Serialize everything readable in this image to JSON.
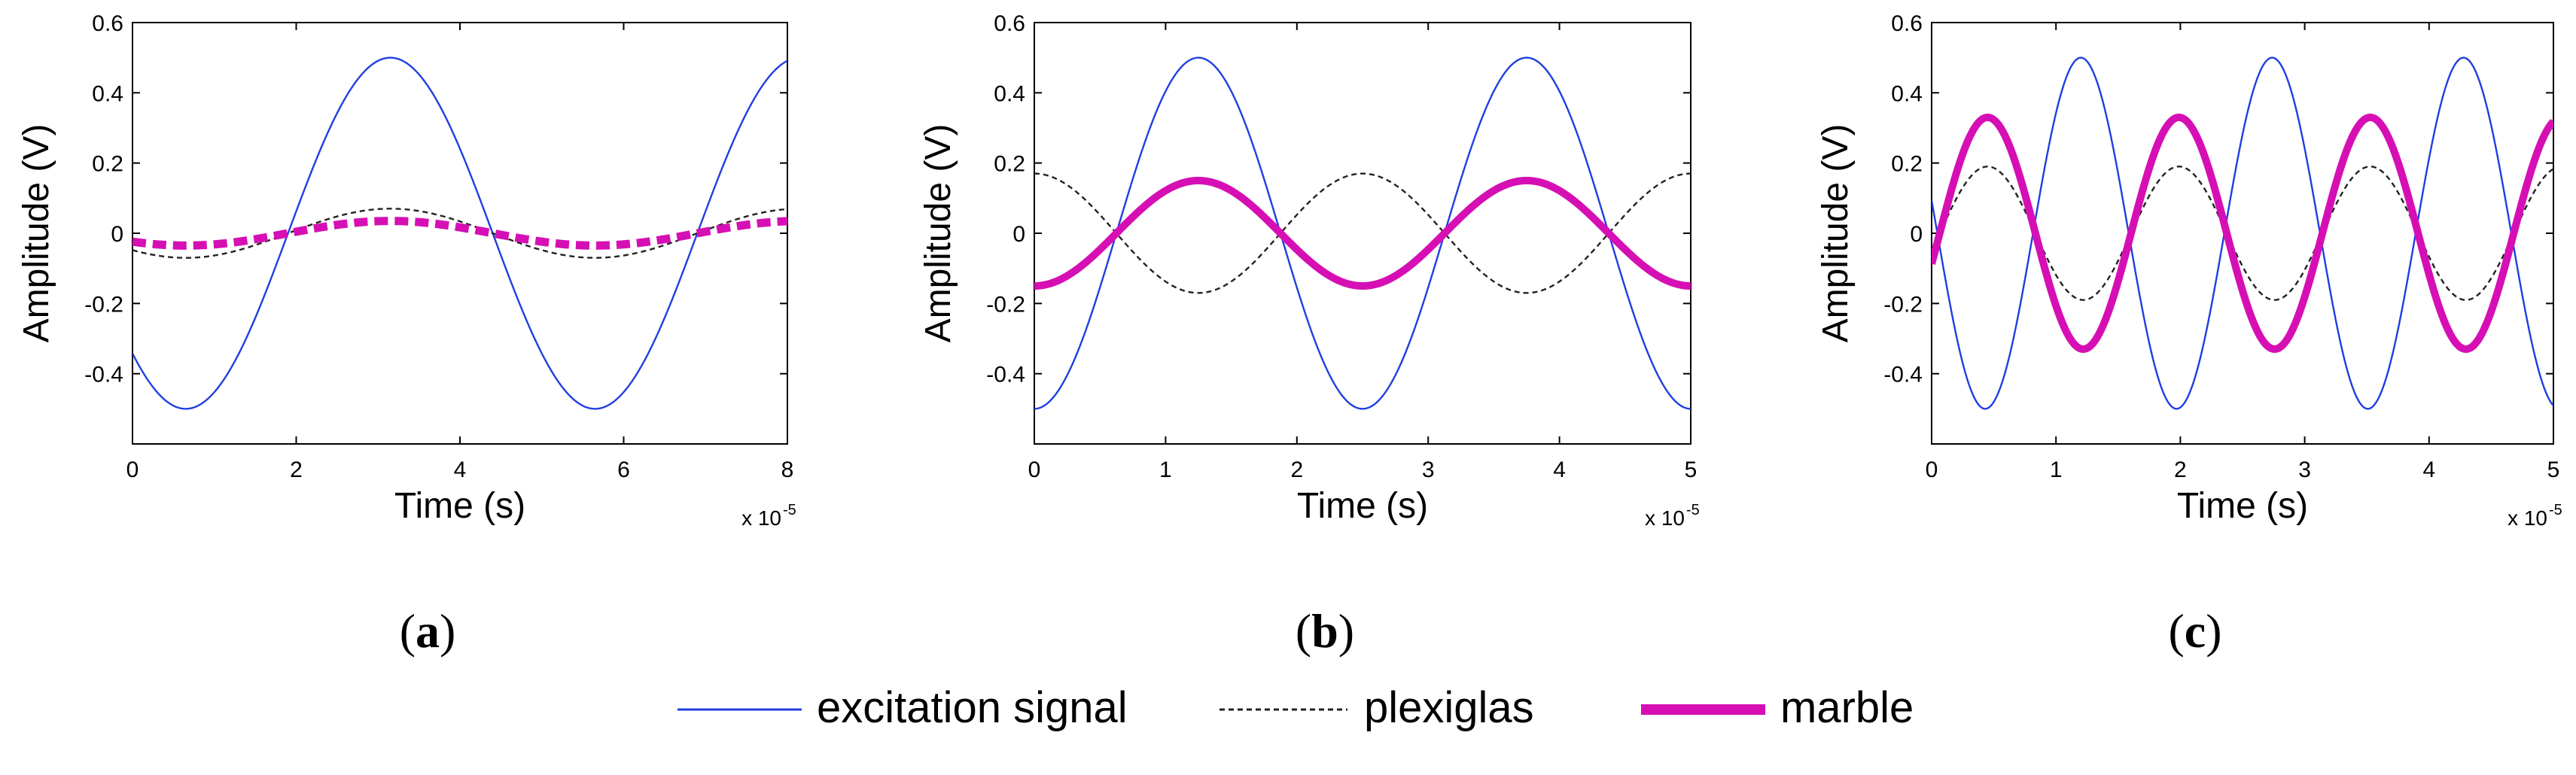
{
  "colors": {
    "excitation": "#1f3fe0",
    "plexiglas": "#222222",
    "marble": "#d60fb4",
    "axis": "#000000",
    "background": "#ffffff"
  },
  "legend": {
    "placement": "bottom-center",
    "items": [
      {
        "key": "excitation",
        "label": "excitation signal"
      },
      {
        "key": "plexiglas",
        "label": "plexiglas"
      },
      {
        "key": "marble",
        "label": "marble"
      }
    ]
  },
  "chart_data": [
    {
      "type": "line",
      "panel_label": "a",
      "xlabel": "Time (s)",
      "ylabel": "Amplitude (V)",
      "x_multiplier": "x 10",
      "x_exponent": "-5",
      "xlim": [
        0,
        8
      ],
      "ylim": [
        -0.6,
        0.6
      ],
      "xticks": [
        0,
        2,
        4,
        6,
        8
      ],
      "xtick_labels": [
        "0",
        "2",
        "4",
        "6",
        "8"
      ],
      "yticks": [
        -0.4,
        -0.2,
        0,
        0.2,
        0.4,
        0.6
      ],
      "ytick_labels": [
        "-0.4",
        "-0.2",
        "0",
        "0.2",
        "0.4",
        "0.6"
      ],
      "series": [
        {
          "name": "excitation signal",
          "key": "excitation",
          "amplitude": 0.5,
          "period": 5.0,
          "peak_at": 3.15
        },
        {
          "name": "plexiglas",
          "key": "plexiglas",
          "amplitude": 0.07,
          "period": 5.0,
          "peak_at": 3.15
        },
        {
          "name": "marble",
          "key": "marble",
          "amplitude": 0.035,
          "period": 5.0,
          "peak_at": 3.15
        }
      ]
    },
    {
      "type": "line",
      "panel_label": "b",
      "xlabel": "Time (s)",
      "ylabel": "Amplitude (V)",
      "x_multiplier": "x 10",
      "x_exponent": "-5",
      "xlim": [
        0,
        5
      ],
      "ylim": [
        -0.6,
        0.6
      ],
      "xticks": [
        0,
        1,
        2,
        3,
        4,
        5
      ],
      "xtick_labels": [
        "0",
        "1",
        "2",
        "3",
        "4",
        "5"
      ],
      "yticks": [
        -0.4,
        -0.2,
        0,
        0.2,
        0.4,
        0.6
      ],
      "ytick_labels": [
        "-0.4",
        "-0.2",
        "0",
        "0.2",
        "0.4",
        "0.6"
      ],
      "series": [
        {
          "name": "excitation signal",
          "key": "excitation",
          "amplitude": 0.5,
          "period": 2.5,
          "peak_at": 1.25
        },
        {
          "name": "plexiglas",
          "key": "plexiglas",
          "amplitude": 0.17,
          "period": 2.5,
          "peak_at": 2.5
        },
        {
          "name": "marble",
          "key": "marble",
          "amplitude": 0.15,
          "period": 2.5,
          "peak_at": 1.25
        }
      ]
    },
    {
      "type": "line",
      "panel_label": "c",
      "xlabel": "Time (s)",
      "ylabel": "Amplitude (V)",
      "x_multiplier": "x 10",
      "x_exponent": "-5",
      "xlim": [
        0,
        5
      ],
      "ylim": [
        -0.6,
        0.6
      ],
      "xticks": [
        0,
        1,
        2,
        3,
        4,
        5
      ],
      "xtick_labels": [
        "0",
        "1",
        "2",
        "3",
        "4",
        "5"
      ],
      "yticks": [
        -0.4,
        -0.2,
        0,
        0.2,
        0.4,
        0.6
      ],
      "ytick_labels": [
        "-0.4",
        "-0.2",
        "0",
        "0.2",
        "0.4",
        "0.6"
      ],
      "series": [
        {
          "name": "excitation signal",
          "key": "excitation",
          "amplitude": 0.5,
          "period": 1.5385,
          "peak_at": 1.2
        },
        {
          "name": "plexiglas",
          "key": "plexiglas",
          "amplitude": 0.19,
          "period": 1.5385,
          "peak_at": 0.45
        },
        {
          "name": "marble",
          "key": "marble",
          "amplitude": 0.33,
          "period": 1.5385,
          "peak_at": 0.45
        }
      ]
    }
  ]
}
